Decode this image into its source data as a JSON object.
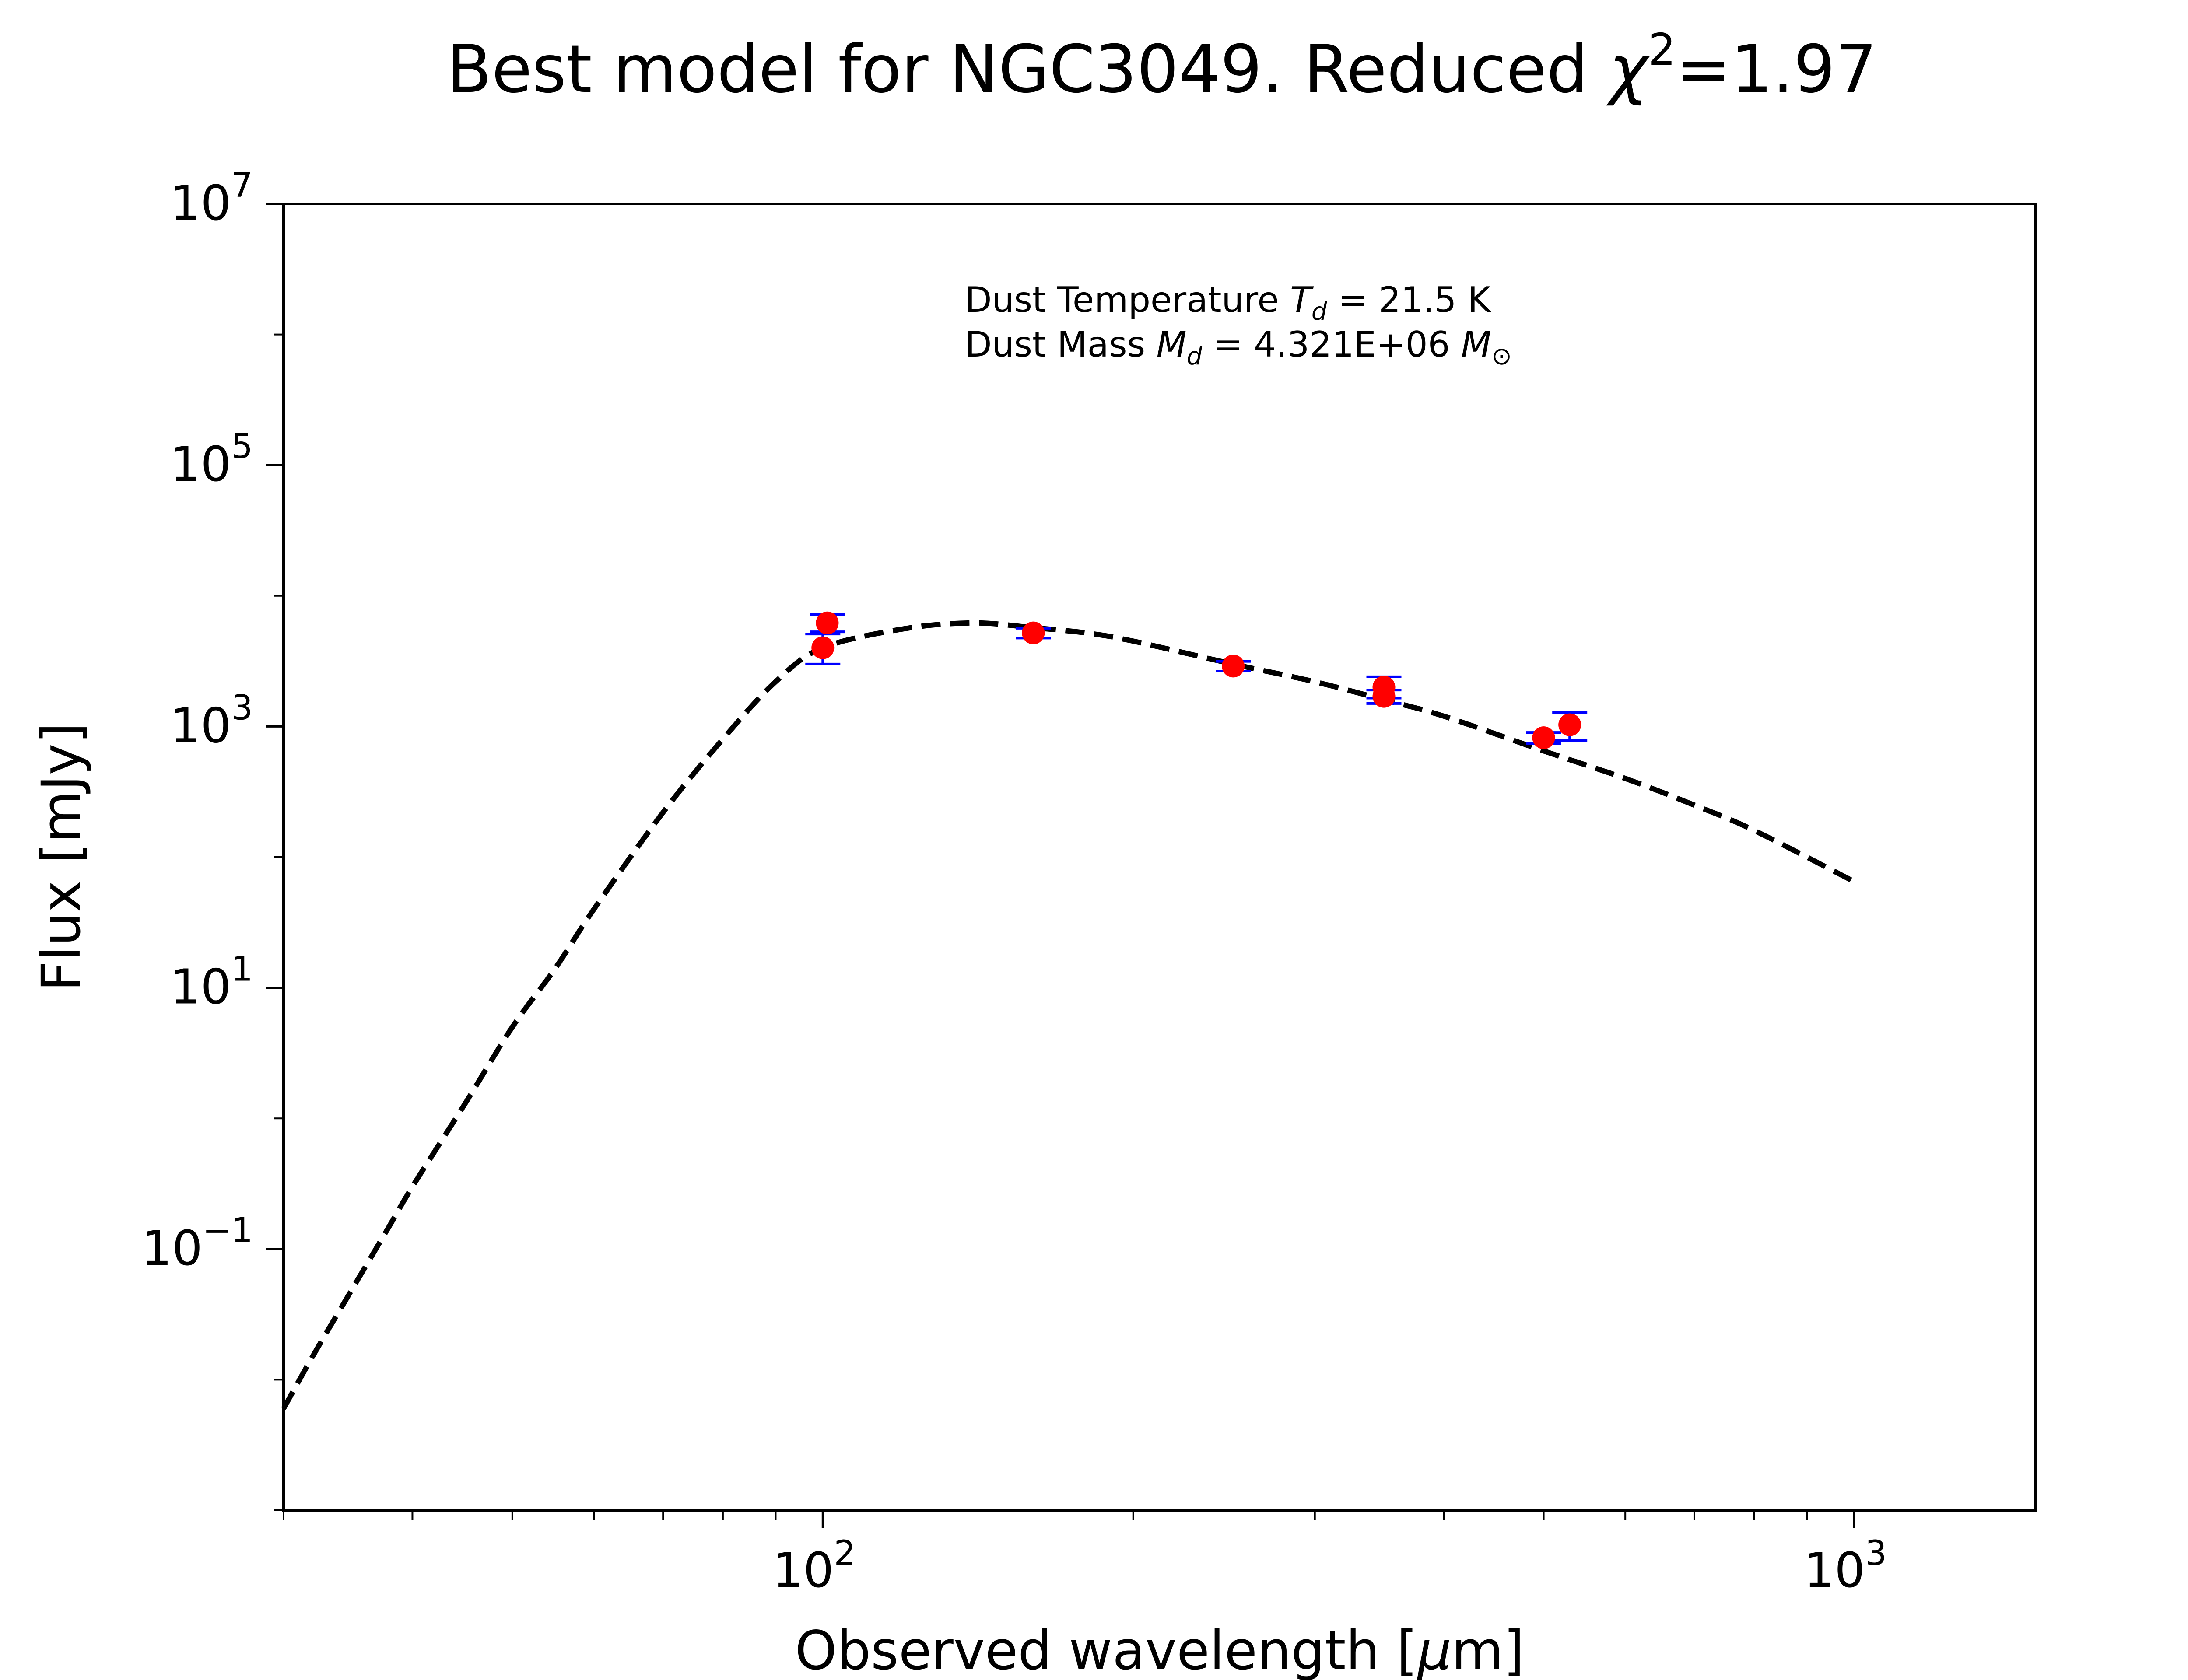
{
  "chart_data": {
    "type": "scatter",
    "title_main": "Best model for NGC3049. Reduced ",
    "title_chi": "χ",
    "title_sup": "2",
    "title_value": "=1.97",
    "xlabel_main": "Observed wavelength [",
    "xlabel_mu": "μ",
    "xlabel_unit": "m]",
    "ylabel": "Flux [mJy]",
    "x_scale": "log",
    "y_scale": "log",
    "xlim": [
      30,
      1500
    ],
    "ylim": [
      0.001,
      10000000
    ],
    "grid": false,
    "x_ticks": [
      {
        "value": 100,
        "base": "10",
        "exp": "2"
      },
      {
        "value": 1000,
        "base": "10",
        "exp": "3"
      }
    ],
    "y_ticks": [
      {
        "value": 0.1,
        "base": "10",
        "exp": "−1"
      },
      {
        "value": 10,
        "base": "10",
        "exp": "1"
      },
      {
        "value": 1000,
        "base": "10",
        "exp": "3"
      },
      {
        "value": 100000,
        "base": "10",
        "exp": "5"
      },
      {
        "value": 10000000,
        "base": "10",
        "exp": "7"
      }
    ],
    "annotation": {
      "line1_prefix": "Dust Temperature ",
      "line1_var": "T",
      "line1_sub": "d",
      "line1_value": " = 21.5 K",
      "line2_prefix": "Dust Mass ",
      "line2_var": "M",
      "line2_sub": "d",
      "line2_value": " = 4.321E+06 ",
      "line2_unit": "M",
      "line2_unit_sub": "⊙"
    },
    "observations": {
      "marker_color": "#ff0000",
      "errorbar_color": "#0000ff",
      "points": [
        {
          "x": 100,
          "y": 4000,
          "yerr_low": 1000,
          "yerr_high": 1100
        },
        {
          "x": 101,
          "y": 6200,
          "yerr_low": 900,
          "yerr_high": 1000
        },
        {
          "x": 160,
          "y": 5200,
          "yerr_low": 450,
          "yerr_high": 450
        },
        {
          "x": 250,
          "y": 2900,
          "yerr_low": 250,
          "yerr_high": 250
        },
        {
          "x": 350,
          "y": 1700,
          "yerr_low": 200,
          "yerr_high": 200
        },
        {
          "x": 350,
          "y": 2000,
          "yerr_low": 350,
          "yerr_high": 400
        },
        {
          "x": 500,
          "y": 820,
          "yerr_low": 80,
          "yerr_high": 80
        },
        {
          "x": 530,
          "y": 1030,
          "yerr_low": 250,
          "yerr_high": 250
        }
      ]
    },
    "model": {
      "color": "#000000",
      "style": "dashed",
      "x": [
        30,
        32,
        35,
        38,
        40,
        45,
        50,
        55,
        60,
        70,
        80,
        90,
        100,
        120,
        140,
        160,
        180,
        200,
        250,
        300,
        350,
        400,
        500,
        600,
        700,
        800,
        1000
      ],
      "y": [
        0.006,
        0.015,
        0.05,
        0.15,
        0.3,
        1.3,
        5,
        14,
        40,
        220,
        800,
        2200,
        4000,
        5600,
        6200,
        5700,
        5200,
        4500,
        3000,
        2200,
        1600,
        1200,
        650,
        400,
        250,
        160,
        65
      ]
    }
  }
}
